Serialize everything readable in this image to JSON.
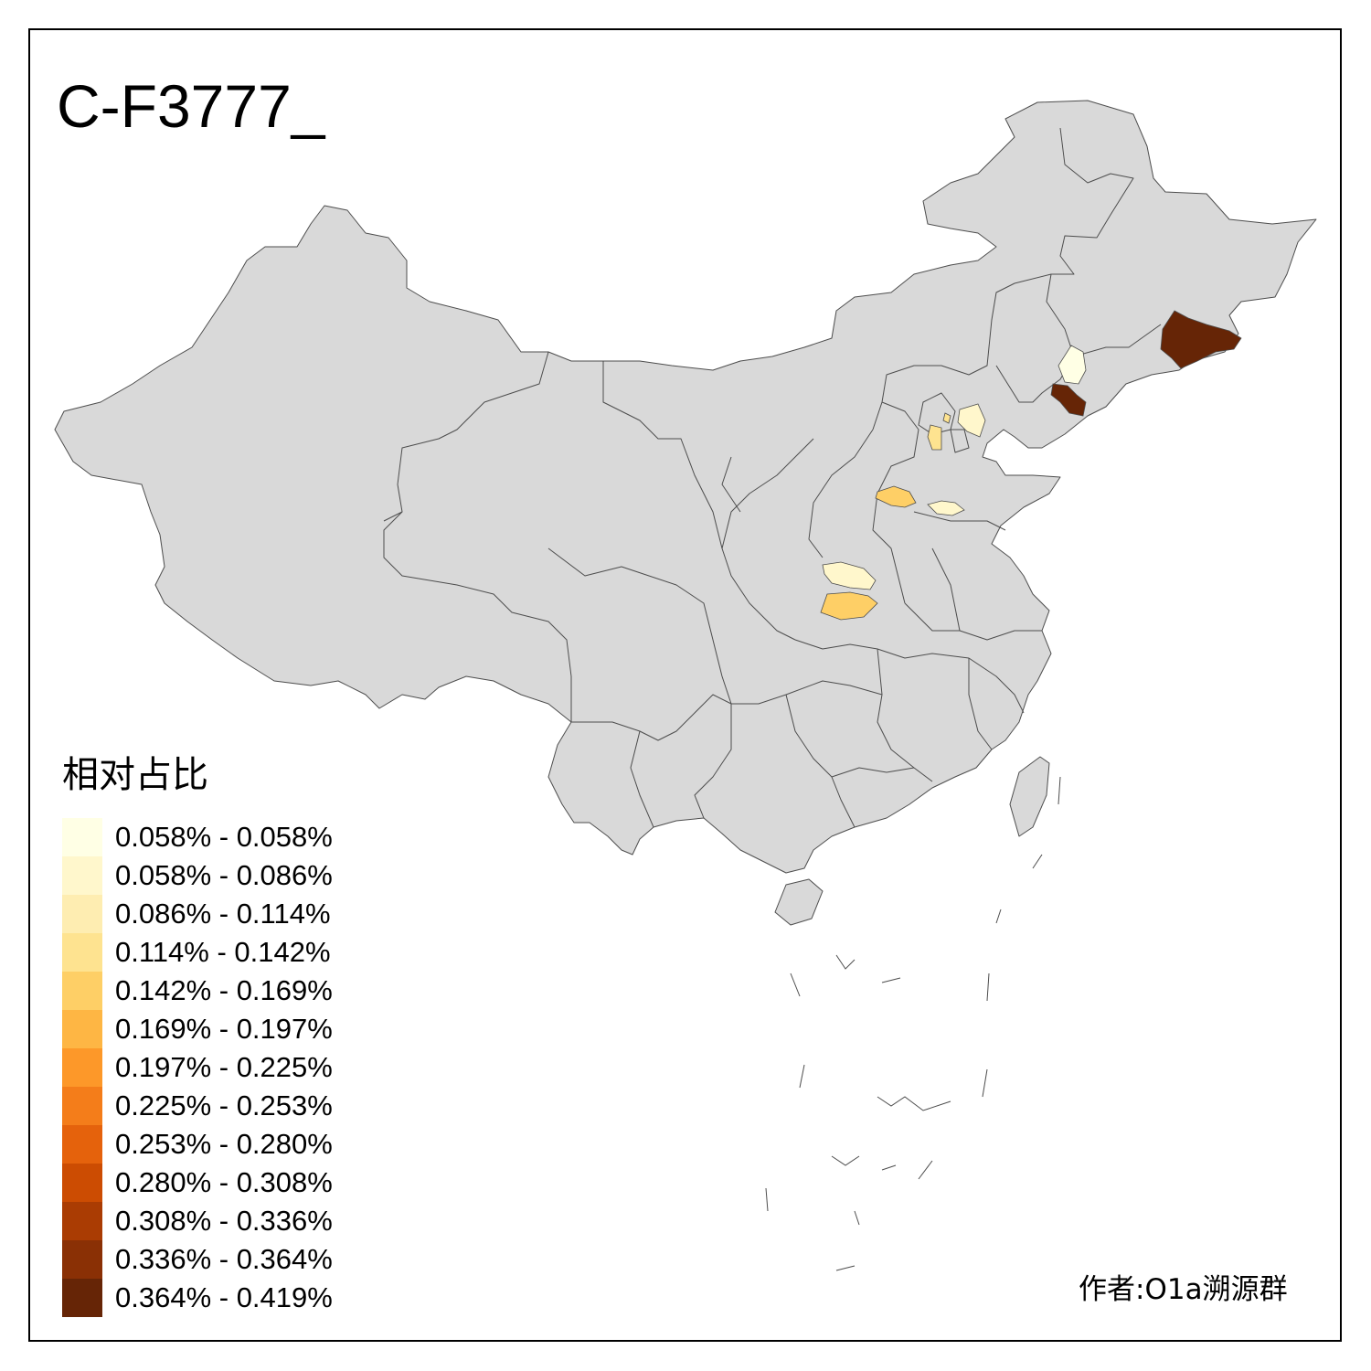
{
  "map": {
    "title": "C-F3777_",
    "base_fill": "#d9d9d9",
    "border_color": "#4d4d4d"
  },
  "legend": {
    "title": "相对占比",
    "items": [
      {
        "label": "0.058% - 0.058%",
        "color": "#ffffe5"
      },
      {
        "label": "0.058% - 0.086%",
        "color": "#fff7cc"
      },
      {
        "label": "0.086% - 0.114%",
        "color": "#feedb1"
      },
      {
        "label": "0.114% - 0.142%",
        "color": "#fee390"
      },
      {
        "label": "0.142% - 0.169%",
        "color": "#fecf66"
      },
      {
        "label": "0.169% - 0.197%",
        "color": "#feb644"
      },
      {
        "label": "0.197% - 0.225%",
        "color": "#fd9829"
      },
      {
        "label": "0.225% - 0.253%",
        "color": "#f47d1a"
      },
      {
        "label": "0.253% - 0.280%",
        "color": "#e5620c"
      },
      {
        "label": "0.280% - 0.308%",
        "color": "#cc4c02"
      },
      {
        "label": "0.308% - 0.336%",
        "color": "#aa3c03"
      },
      {
        "label": "0.336% - 0.364%",
        "color": "#8a3005"
      },
      {
        "label": "0.364% - 0.419%",
        "color": "#662506"
      }
    ]
  },
  "credit": "作者:O1a溯源群"
}
